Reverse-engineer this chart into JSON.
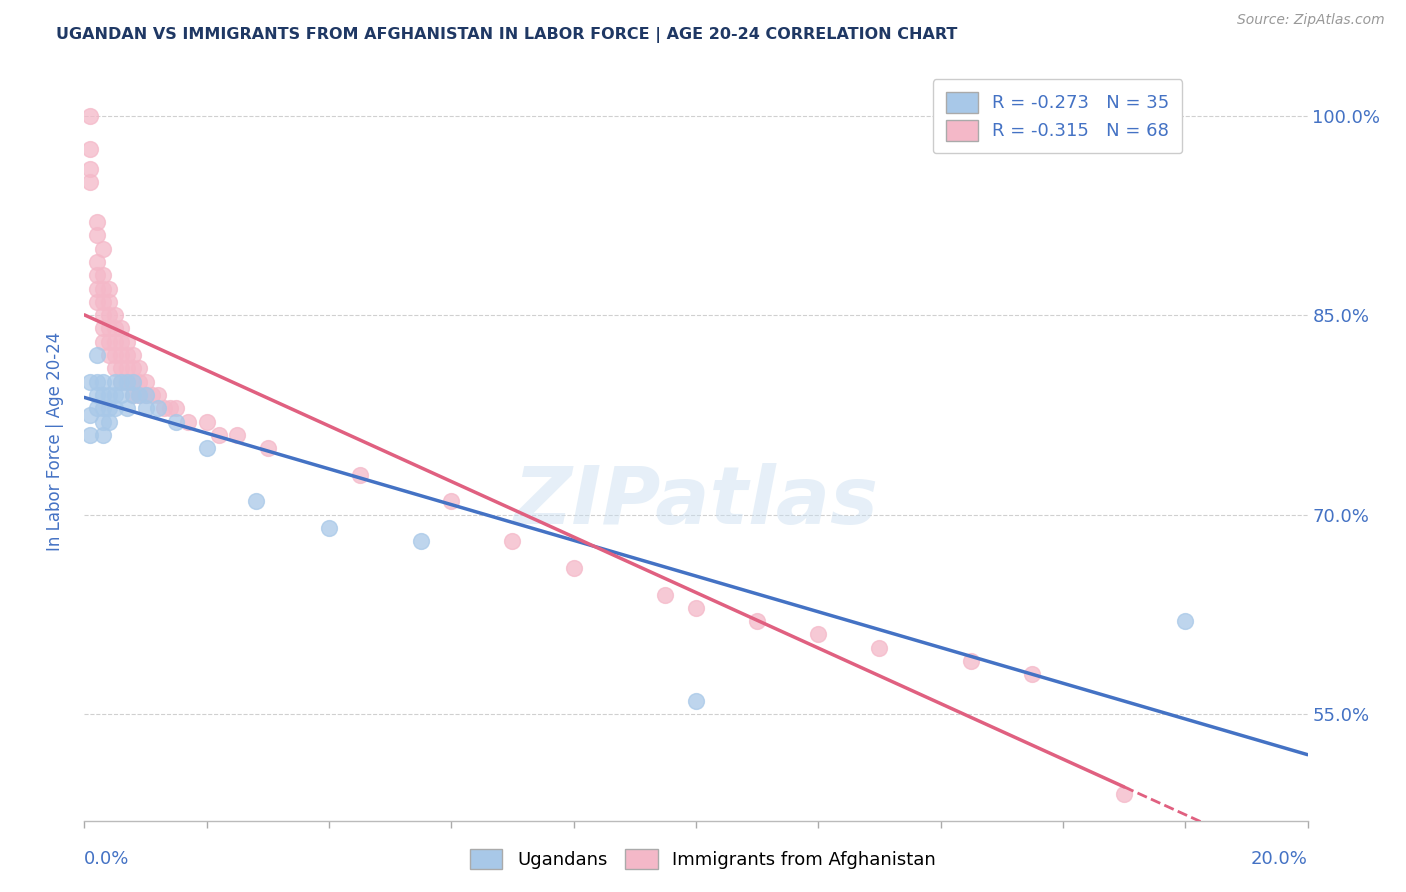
{
  "title": "UGANDAN VS IMMIGRANTS FROM AFGHANISTAN IN LABOR FORCE | AGE 20-24 CORRELATION CHART",
  "source": "Source: ZipAtlas.com",
  "ylabel": "In Labor Force | Age 20-24",
  "watermark": "ZIPatlas",
  "legend_blue_r": "-0.273",
  "legend_blue_n": "35",
  "legend_pink_r": "-0.315",
  "legend_pink_n": "68",
  "blue_color": "#a8c8e8",
  "pink_color": "#f4b8c8",
  "blue_line_color": "#4472c4",
  "pink_line_color": "#e06080",
  "title_color": "#1f3864",
  "axis_label_color": "#4472c4",
  "tick_label_color": "#4472c4",
  "background_color": "#ffffff",
  "grid_color": "#d0d0d0",
  "xlim": [
    0.0,
    0.2
  ],
  "ylim": [
    0.47,
    1.04
  ],
  "ytick_vals": [
    0.55,
    0.7,
    0.85,
    1.0
  ],
  "ytick_labels": [
    "55.0%",
    "70.0%",
    "85.0%",
    "100.0%"
  ],
  "ugandan_x": [
    0.001,
    0.001,
    0.001,
    0.002,
    0.002,
    0.002,
    0.002,
    0.003,
    0.003,
    0.003,
    0.003,
    0.003,
    0.004,
    0.004,
    0.004,
    0.005,
    0.005,
    0.005,
    0.006,
    0.006,
    0.007,
    0.007,
    0.008,
    0.008,
    0.009,
    0.01,
    0.01,
    0.012,
    0.015,
    0.02,
    0.028,
    0.04,
    0.055,
    0.1,
    0.18
  ],
  "ugandan_y": [
    0.8,
    0.775,
    0.76,
    0.82,
    0.8,
    0.79,
    0.78,
    0.8,
    0.79,
    0.78,
    0.77,
    0.76,
    0.79,
    0.78,
    0.77,
    0.8,
    0.79,
    0.78,
    0.8,
    0.79,
    0.8,
    0.78,
    0.8,
    0.79,
    0.79,
    0.79,
    0.78,
    0.78,
    0.77,
    0.75,
    0.71,
    0.69,
    0.68,
    0.56,
    0.62
  ],
  "afghan_x": [
    0.001,
    0.001,
    0.001,
    0.001,
    0.002,
    0.002,
    0.002,
    0.002,
    0.002,
    0.002,
    0.003,
    0.003,
    0.003,
    0.003,
    0.003,
    0.003,
    0.003,
    0.004,
    0.004,
    0.004,
    0.004,
    0.004,
    0.004,
    0.005,
    0.005,
    0.005,
    0.005,
    0.005,
    0.006,
    0.006,
    0.006,
    0.006,
    0.006,
    0.007,
    0.007,
    0.007,
    0.007,
    0.008,
    0.008,
    0.008,
    0.008,
    0.009,
    0.009,
    0.009,
    0.01,
    0.01,
    0.011,
    0.012,
    0.013,
    0.014,
    0.015,
    0.017,
    0.02,
    0.022,
    0.025,
    0.03,
    0.045,
    0.06,
    0.07,
    0.08,
    0.095,
    0.1,
    0.11,
    0.12,
    0.13,
    0.145,
    0.155,
    0.17
  ],
  "afghan_y": [
    1.0,
    0.975,
    0.96,
    0.95,
    0.92,
    0.91,
    0.89,
    0.88,
    0.87,
    0.86,
    0.9,
    0.88,
    0.87,
    0.86,
    0.85,
    0.84,
    0.83,
    0.87,
    0.86,
    0.85,
    0.84,
    0.83,
    0.82,
    0.85,
    0.84,
    0.83,
    0.82,
    0.81,
    0.84,
    0.83,
    0.82,
    0.81,
    0.8,
    0.83,
    0.82,
    0.81,
    0.8,
    0.82,
    0.81,
    0.8,
    0.79,
    0.81,
    0.8,
    0.79,
    0.8,
    0.79,
    0.79,
    0.79,
    0.78,
    0.78,
    0.78,
    0.77,
    0.77,
    0.76,
    0.76,
    0.75,
    0.73,
    0.71,
    0.68,
    0.66,
    0.64,
    0.63,
    0.62,
    0.61,
    0.6,
    0.59,
    0.58,
    0.49
  ]
}
